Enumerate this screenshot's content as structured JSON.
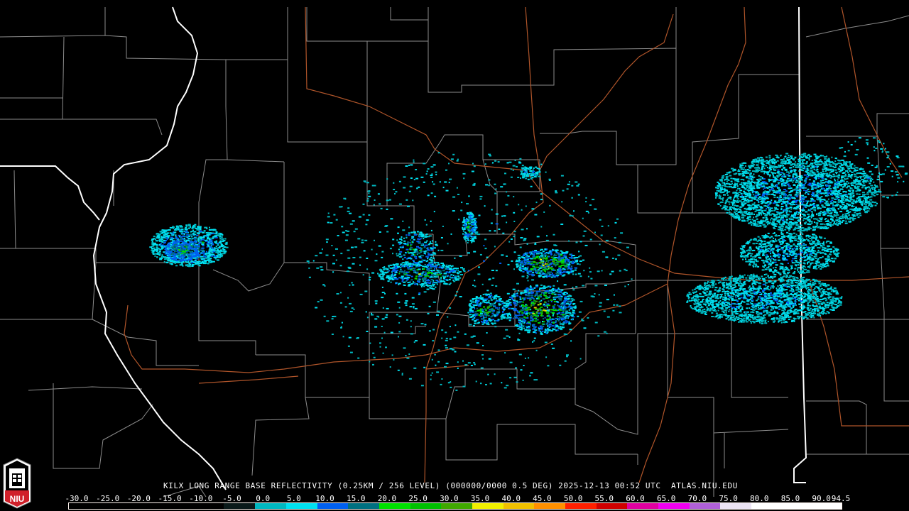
{
  "title": "KILX LONG RANGE BASE REFLECTIVITY (0.25KM / 256 LEVEL) (000000/0000 0.5 DEG) 2025-12-13 00:52 UTC  ATLAS.NIU.EDU",
  "radar_site": "KILX",
  "product": "LONG RANGE BASE REFLECTIVITY",
  "timestamp": "2025-12-13 00:52 UTC",
  "website": "ATLAS.NIU.EDU",
  "logo": {
    "text": "NIU",
    "color": "#d0202a"
  },
  "colorbar": {
    "labels": [
      "-30.0",
      "-25.0",
      "-20.0",
      "-15.0",
      "-10.0",
      "-5.0",
      "0.0",
      "5.0",
      "10.0",
      "15.0",
      "20.0",
      "25.0",
      "30.0",
      "35.0",
      "40.0",
      "45.0",
      "50.0",
      "55.0",
      "60.0",
      "65.0",
      "70.0",
      "75.0",
      "80.0",
      "85.0",
      "90.0",
      "94.5"
    ],
    "min": -30.0,
    "max": 94.5,
    "segments": [
      {
        "from": -30,
        "to": -5,
        "color": "#000000"
      },
      {
        "from": -5,
        "to": 0,
        "color": "#0a1a1a"
      },
      {
        "from": 0,
        "to": 5,
        "color": "#00b8c0"
      },
      {
        "from": 5,
        "to": 10,
        "color": "#00e0f0"
      },
      {
        "from": 10,
        "to": 15,
        "color": "#0060f0"
      },
      {
        "from": 15,
        "to": 20,
        "color": "#007080"
      },
      {
        "from": 20,
        "to": 25,
        "color": "#00e000"
      },
      {
        "from": 25,
        "to": 30,
        "color": "#00c000"
      },
      {
        "from": 30,
        "to": 35,
        "color": "#40a800"
      },
      {
        "from": 35,
        "to": 40,
        "color": "#f0f000"
      },
      {
        "from": 40,
        "to": 45,
        "color": "#f0c000"
      },
      {
        "from": 45,
        "to": 50,
        "color": "#ff9000"
      },
      {
        "from": 50,
        "to": 55,
        "color": "#ff2000"
      },
      {
        "from": 55,
        "to": 60,
        "color": "#d00000"
      },
      {
        "from": 60,
        "to": 65,
        "color": "#e000a0"
      },
      {
        "from": 65,
        "to": 70,
        "color": "#f000f0"
      },
      {
        "from": 70,
        "to": 75,
        "color": "#b060d8"
      },
      {
        "from": 75,
        "to": 80,
        "color": "#ece4f4"
      },
      {
        "from": 80,
        "to": 94.5,
        "color": "#ffffff"
      }
    ]
  },
  "map_colors": {
    "state_border": "#ffffff",
    "county_border": "#8c8c8c",
    "highway": "#b0552a",
    "background": "#000000"
  }
}
